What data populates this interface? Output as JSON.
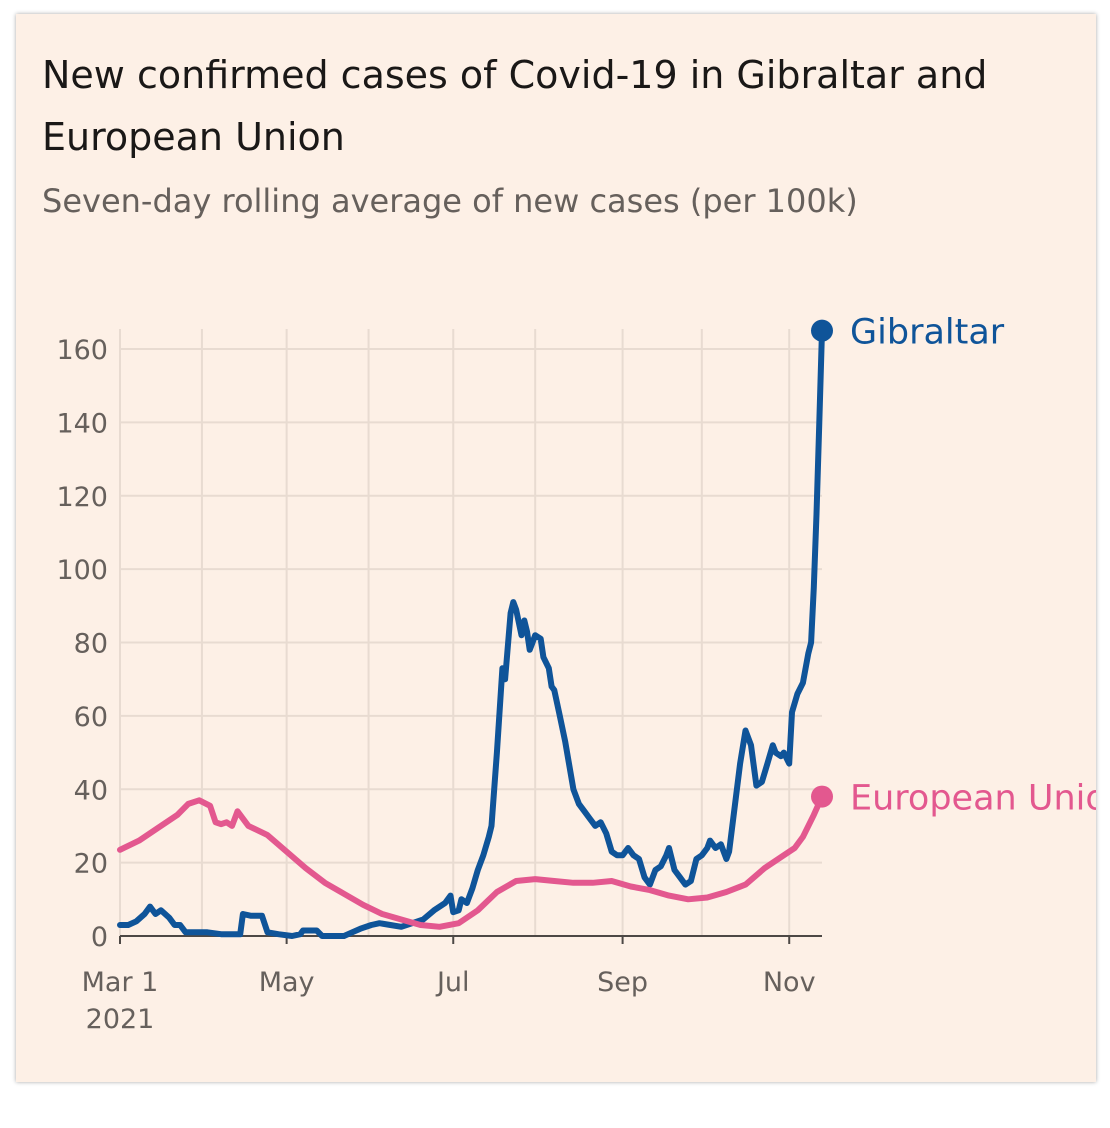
{
  "chart_data": {
    "type": "line",
    "title": "New confirmed cases of Covid-19 in Gibraltar and European Union",
    "subtitle": "Seven-day rolling average of new cases (per 100k)",
    "xlabel": "",
    "ylabel": "",
    "ylim": [
      0,
      160
    ],
    "y_ticks": [
      0,
      20,
      40,
      60,
      80,
      100,
      120,
      140,
      160
    ],
    "x_range": [
      "2021-03-01",
      "2021-11-13"
    ],
    "x_ticks": [
      {
        "date": "2021-03-01",
        "label": "Mar 1",
        "sublabel": "2021"
      },
      {
        "date": "2021-05-01",
        "label": "May",
        "sublabel": ""
      },
      {
        "date": "2021-07-01",
        "label": "Jul",
        "sublabel": ""
      },
      {
        "date": "2021-09-01",
        "label": "Sep",
        "sublabel": ""
      },
      {
        "date": "2021-11-01",
        "label": "Nov",
        "sublabel": ""
      }
    ],
    "grid_dates": [
      "2021-03-01",
      "2021-03-31",
      "2021-05-01",
      "2021-05-31",
      "2021-07-01",
      "2021-07-31",
      "2021-09-01",
      "2021-09-30",
      "2021-11-01"
    ],
    "grid": true,
    "legend": "end-of-line labels",
    "series": [
      {
        "name": "Gibraltar",
        "color": "#0f5499",
        "points": [
          [
            "2021-03-01",
            3
          ],
          [
            "2021-03-04",
            3
          ],
          [
            "2021-03-07",
            4
          ],
          [
            "2021-03-10",
            6
          ],
          [
            "2021-03-12",
            8
          ],
          [
            "2021-03-14",
            6
          ],
          [
            "2021-03-16",
            7
          ],
          [
            "2021-03-19",
            5
          ],
          [
            "2021-03-21",
            3
          ],
          [
            "2021-03-23",
            3
          ],
          [
            "2021-03-25",
            1
          ],
          [
            "2021-03-28",
            1
          ],
          [
            "2021-04-02",
            1
          ],
          [
            "2021-04-07",
            0.5
          ],
          [
            "2021-04-12",
            0.5
          ],
          [
            "2021-04-14",
            0.5
          ],
          [
            "2021-04-15",
            6
          ],
          [
            "2021-04-18",
            5.5
          ],
          [
            "2021-04-22",
            5.5
          ],
          [
            "2021-04-24",
            1
          ],
          [
            "2021-04-28",
            0.5
          ],
          [
            "2021-05-03",
            0
          ],
          [
            "2021-05-06",
            0.5
          ],
          [
            "2021-05-07",
            1.5
          ],
          [
            "2021-05-12",
            1.5
          ],
          [
            "2021-05-14",
            0
          ],
          [
            "2021-05-22",
            0
          ],
          [
            "2021-05-25",
            1
          ],
          [
            "2021-05-28",
            2
          ],
          [
            "2021-06-01",
            3
          ],
          [
            "2021-06-04",
            3.5
          ],
          [
            "2021-06-08",
            3
          ],
          [
            "2021-06-12",
            2.5
          ],
          [
            "2021-06-16",
            3.5
          ],
          [
            "2021-06-20",
            4.5
          ],
          [
            "2021-06-24",
            7
          ],
          [
            "2021-06-28",
            9
          ],
          [
            "2021-06-30",
            11
          ],
          [
            "2021-07-01",
            6.5
          ],
          [
            "2021-07-03",
            7
          ],
          [
            "2021-07-04",
            10
          ],
          [
            "2021-07-06",
            9
          ],
          [
            "2021-07-08",
            13
          ],
          [
            "2021-07-10",
            18
          ],
          [
            "2021-07-12",
            22
          ],
          [
            "2021-07-14",
            27
          ],
          [
            "2021-07-15",
            30
          ],
          [
            "2021-07-17",
            50
          ],
          [
            "2021-07-19",
            73
          ],
          [
            "2021-07-20",
            70
          ],
          [
            "2021-07-22",
            88
          ],
          [
            "2021-07-23",
            91
          ],
          [
            "2021-07-24",
            89
          ],
          [
            "2021-07-26",
            82
          ],
          [
            "2021-07-27",
            86
          ],
          [
            "2021-07-28",
            83
          ],
          [
            "2021-07-29",
            78
          ],
          [
            "2021-07-30",
            80
          ],
          [
            "2021-07-31",
            82
          ],
          [
            "2021-08-02",
            81
          ],
          [
            "2021-08-03",
            76
          ],
          [
            "2021-08-05",
            73
          ],
          [
            "2021-08-06",
            68
          ],
          [
            "2021-08-07",
            67
          ],
          [
            "2021-08-09",
            60
          ],
          [
            "2021-08-11",
            53
          ],
          [
            "2021-08-14",
            40
          ],
          [
            "2021-08-16",
            36
          ],
          [
            "2021-08-18",
            34
          ],
          [
            "2021-08-20",
            32
          ],
          [
            "2021-08-22",
            30
          ],
          [
            "2021-08-24",
            31
          ],
          [
            "2021-08-26",
            28
          ],
          [
            "2021-08-28",
            23
          ],
          [
            "2021-08-30",
            22
          ],
          [
            "2021-09-01",
            22
          ],
          [
            "2021-09-03",
            24
          ],
          [
            "2021-09-05",
            22
          ],
          [
            "2021-09-07",
            21
          ],
          [
            "2021-09-09",
            16
          ],
          [
            "2021-09-11",
            14
          ],
          [
            "2021-09-13",
            18
          ],
          [
            "2021-09-15",
            19
          ],
          [
            "2021-09-17",
            22
          ],
          [
            "2021-09-18",
            24
          ],
          [
            "2021-09-20",
            18
          ],
          [
            "2021-09-22",
            16
          ],
          [
            "2021-09-24",
            14
          ],
          [
            "2021-09-26",
            15
          ],
          [
            "2021-09-28",
            21
          ],
          [
            "2021-09-30",
            22
          ],
          [
            "2021-10-02",
            24
          ],
          [
            "2021-10-03",
            26
          ],
          [
            "2021-10-05",
            24
          ],
          [
            "2021-10-07",
            25
          ],
          [
            "2021-10-09",
            21
          ],
          [
            "2021-10-10",
            23
          ],
          [
            "2021-10-12",
            35
          ],
          [
            "2021-10-14",
            47
          ],
          [
            "2021-10-16",
            56
          ],
          [
            "2021-10-18",
            52
          ],
          [
            "2021-10-20",
            41
          ],
          [
            "2021-10-22",
            42
          ],
          [
            "2021-10-24",
            47
          ],
          [
            "2021-10-26",
            52
          ],
          [
            "2021-10-27",
            50
          ],
          [
            "2021-10-29",
            49
          ],
          [
            "2021-10-30",
            50
          ],
          [
            "2021-11-01",
            47
          ],
          [
            "2021-11-02",
            61
          ],
          [
            "2021-11-04",
            66
          ],
          [
            "2021-11-06",
            69
          ],
          [
            "2021-11-08",
            77
          ],
          [
            "2021-11-09",
            80
          ],
          [
            "2021-11-10",
            95
          ],
          [
            "2021-11-11",
            115
          ],
          [
            "2021-11-12",
            140
          ],
          [
            "2021-11-13",
            165
          ]
        ]
      },
      {
        "name": "European Union",
        "color": "#e3588f",
        "points": [
          [
            "2021-03-01",
            23.5
          ],
          [
            "2021-03-08",
            26
          ],
          [
            "2021-03-15",
            29.5
          ],
          [
            "2021-03-22",
            33
          ],
          [
            "2021-03-26",
            36
          ],
          [
            "2021-03-30",
            37
          ],
          [
            "2021-04-03",
            35.5
          ],
          [
            "2021-04-05",
            31
          ],
          [
            "2021-04-07",
            30.5
          ],
          [
            "2021-04-09",
            31
          ],
          [
            "2021-04-11",
            30
          ],
          [
            "2021-04-13",
            34
          ],
          [
            "2021-04-17",
            30
          ],
          [
            "2021-04-24",
            27.5
          ],
          [
            "2021-05-01",
            23
          ],
          [
            "2021-05-08",
            18.5
          ],
          [
            "2021-05-15",
            14.5
          ],
          [
            "2021-05-22",
            11.5
          ],
          [
            "2021-05-29",
            8.5
          ],
          [
            "2021-06-05",
            6
          ],
          [
            "2021-06-12",
            4.5
          ],
          [
            "2021-06-19",
            3
          ],
          [
            "2021-06-26",
            2.5
          ],
          [
            "2021-07-03",
            3.5
          ],
          [
            "2021-07-10",
            7
          ],
          [
            "2021-07-17",
            12
          ],
          [
            "2021-07-24",
            15
          ],
          [
            "2021-07-31",
            15.5
          ],
          [
            "2021-08-07",
            15
          ],
          [
            "2021-08-14",
            14.5
          ],
          [
            "2021-08-21",
            14.5
          ],
          [
            "2021-08-28",
            15
          ],
          [
            "2021-09-04",
            13.5
          ],
          [
            "2021-09-11",
            12.5
          ],
          [
            "2021-09-18",
            11
          ],
          [
            "2021-09-25",
            10
          ],
          [
            "2021-10-02",
            10.5
          ],
          [
            "2021-10-09",
            12
          ],
          [
            "2021-10-16",
            14
          ],
          [
            "2021-10-23",
            18.5
          ],
          [
            "2021-10-30",
            22
          ],
          [
            "2021-11-03",
            24
          ],
          [
            "2021-11-06",
            27
          ],
          [
            "2021-11-10",
            33
          ],
          [
            "2021-11-13",
            38
          ]
        ]
      }
    ]
  }
}
